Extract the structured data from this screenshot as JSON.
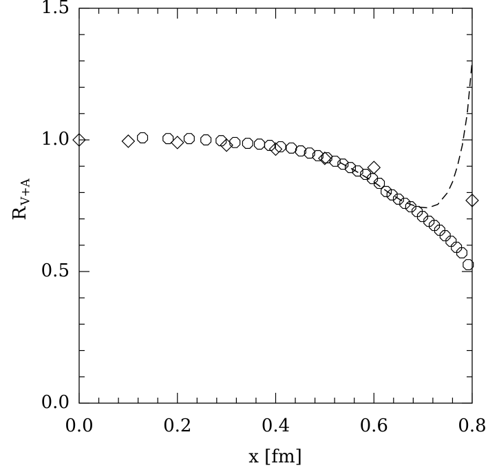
{
  "chart_data": {
    "type": "scatter",
    "xlabel": "x [fm]",
    "ylabel": "R",
    "ylabel_sub": "V+A",
    "xlim": [
      0,
      0.8
    ],
    "ylim": [
      0,
      1.5
    ],
    "xticks": [
      {
        "value": 0,
        "label": "0.0"
      },
      {
        "value": 0.2,
        "label": "0.2"
      },
      {
        "value": 0.4,
        "label": "0.4"
      },
      {
        "value": 0.6,
        "label": "0.6"
      },
      {
        "value": 0.8,
        "label": "0.8"
      }
    ],
    "yticks": [
      {
        "value": 0,
        "label": "0.0"
      },
      {
        "value": 0.5,
        "label": "0.5"
      },
      {
        "value": 1,
        "label": "1.0"
      },
      {
        "value": 1.5,
        "label": "1.5"
      }
    ],
    "xminorticks": [
      0.04,
      0.08,
      0.12,
      0.16,
      0.24,
      0.28,
      0.32,
      0.36,
      0.44,
      0.48,
      0.52,
      0.56,
      0.64,
      0.68,
      0.72,
      0.76
    ],
    "yminorticks": [
      0.1,
      0.2,
      0.3,
      0.4,
      0.6,
      0.7,
      0.8,
      0.9,
      1.1,
      1.2,
      1.3,
      1.4
    ],
    "series": [
      {
        "marker": "octagon",
        "color": "#000000",
        "x": [
          0.129,
          0.181,
          0.224,
          0.258,
          0.289,
          0.317,
          0.343,
          0.367,
          0.388,
          0.41,
          0.432,
          0.451,
          0.469,
          0.486,
          0.504,
          0.521,
          0.537,
          0.552,
          0.567,
          0.583,
          0.597,
          0.611,
          0.625,
          0.637,
          0.65,
          0.663,
          0.675,
          0.688,
          0.699,
          0.712,
          0.723,
          0.734,
          0.745,
          0.757,
          0.768,
          0.779,
          0.792
        ],
        "values": [
          1.008,
          1.005,
          1.005,
          1.0,
          0.997,
          0.99,
          0.987,
          0.984,
          0.979,
          0.974,
          0.969,
          0.958,
          0.95,
          0.94,
          0.932,
          0.919,
          0.908,
          0.895,
          0.882,
          0.869,
          0.853,
          0.835,
          0.804,
          0.791,
          0.775,
          0.759,
          0.746,
          0.728,
          0.709,
          0.691,
          0.675,
          0.657,
          0.636,
          0.615,
          0.592,
          0.571,
          0.526
        ]
      },
      {
        "marker": "diamond",
        "color": "#000000",
        "x": [
          0,
          0.1,
          0.2,
          0.3,
          0.4,
          0.5,
          0.6,
          0.8
        ],
        "values": [
          1.0,
          0.995,
          0.99,
          0.98,
          0.965,
          0.93,
          0.895,
          0.77
        ]
      },
      {
        "marker": "dashed-line",
        "color": "#000000",
        "x": [
          0.53,
          0.56,
          0.6,
          0.63,
          0.66,
          0.69,
          0.71,
          0.73,
          0.75,
          0.76,
          0.77,
          0.78,
          0.79,
          0.8
        ],
        "values": [
          0.915,
          0.885,
          0.84,
          0.8,
          0.765,
          0.745,
          0.742,
          0.755,
          0.8,
          0.84,
          0.9,
          0.98,
          1.1,
          1.3
        ]
      }
    ]
  }
}
